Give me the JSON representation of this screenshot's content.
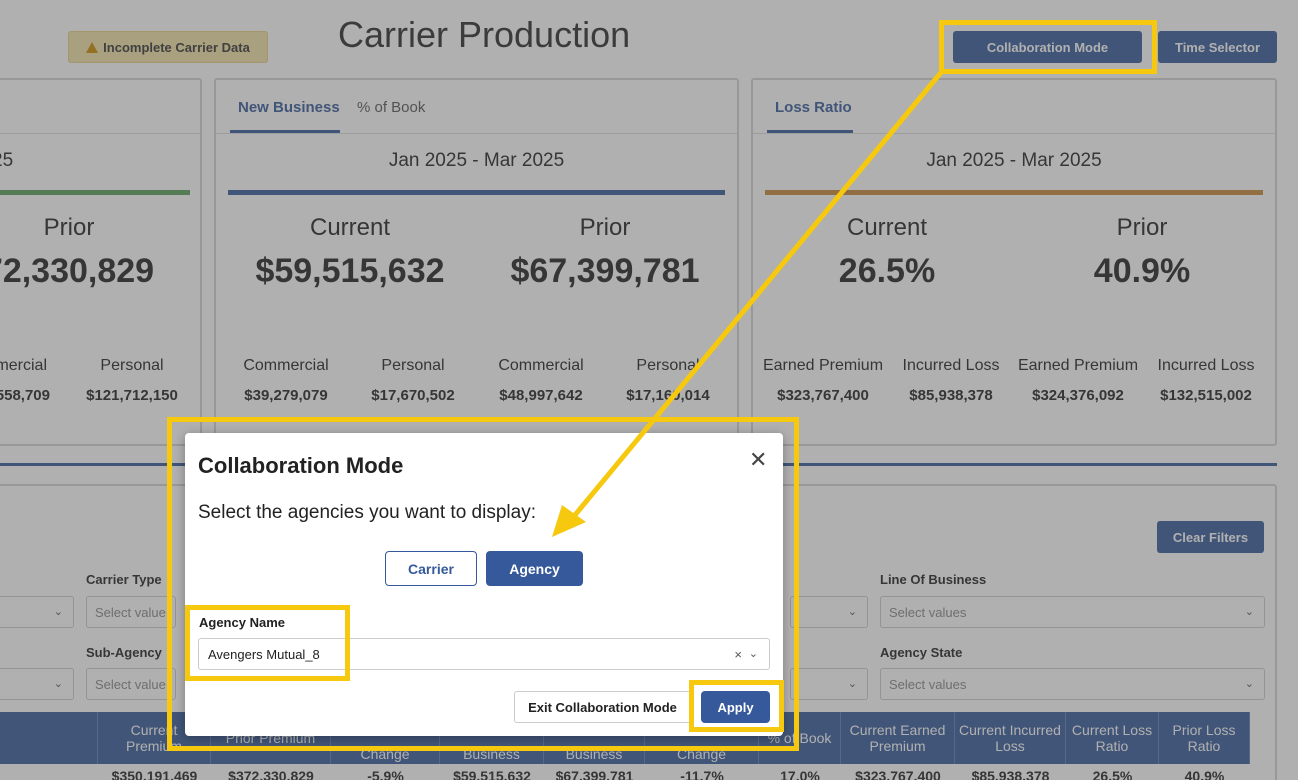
{
  "header": {
    "warning_badge": "Incomplete Carrier Data",
    "title": "Carrier Production",
    "collaboration_button": "Collaboration Mode",
    "time_selector_button": "Time Selector"
  },
  "card_left": {
    "period_suffix": "25",
    "prior_label": "Prior",
    "prior_value": "72,330,829",
    "sub_labels": [
      "mercial",
      "Personal"
    ],
    "sub_values": [
      "558,709",
      "$121,712,150"
    ],
    "bar_color": "#5aa05a"
  },
  "card_new_business": {
    "tabs": [
      "New Business",
      "% of Book"
    ],
    "period": "Jan 2025 - Mar 2025",
    "current_label": "Current",
    "current_value": "$59,515,632",
    "prior_label": "Prior",
    "prior_value": "$67,399,781",
    "sub_labels": [
      "Commercial",
      "Personal",
      "Commercial",
      "Personal"
    ],
    "sub_values": [
      "$39,279,079",
      "$17,670,502",
      "$48,997,642",
      "$17,160,014"
    ],
    "bar_color": "#35599a"
  },
  "card_loss_ratio": {
    "tabs": [
      "Loss Ratio"
    ],
    "period": "Jan 2025 - Mar 2025",
    "current_label": "Current",
    "current_value": "26.5%",
    "prior_label": "Prior",
    "prior_value": "40.9%",
    "sub_labels": [
      "Earned Premium",
      "Incurred Loss",
      "Earned Premium",
      "Incurred Loss"
    ],
    "sub_values": [
      "$323,767,400",
      "$85,938,378",
      "$324,376,092",
      "$132,515,002"
    ],
    "bar_color": "#c9873a"
  },
  "filters": {
    "clear_button": "Clear Filters",
    "carrier_type_label": "Carrier Type",
    "sub_agency_label": "Sub-Agency",
    "line_of_business_label": "Line Of Business",
    "agency_state_label": "Agency State",
    "placeholder": "Select values",
    "placeholder_truncated": "Select value"
  },
  "table": {
    "headers": [
      "Current Premium",
      "Prior Premium",
      "Change",
      "Business",
      "Business",
      "Change",
      "% of Book",
      "Current Earned Premium",
      "Current Incurred Loss",
      "Current Loss Ratio",
      "Prior Loss Ratio"
    ],
    "row": [
      "$350,191,469",
      "$372,330,829",
      "-5.9%",
      "$59,515,632",
      "$67,399,781",
      "-11.7%",
      "17.0%",
      "$323,767,400",
      "$85,938,378",
      "26.5%",
      "40.9%"
    ]
  },
  "modal": {
    "title": "Collaboration Mode",
    "close_symbol": "✕",
    "description": "Select the agencies you want to display:",
    "toggle_carrier": "Carrier",
    "toggle_agency": "Agency",
    "agency_label": "Agency Name",
    "agency_value": "Avengers Mutual_8",
    "clear_symbol": "×",
    "exit_button": "Exit Collaboration Mode",
    "apply_button": "Apply"
  },
  "colors": {
    "primary": "#35599a",
    "highlight": "#f6c80e"
  }
}
